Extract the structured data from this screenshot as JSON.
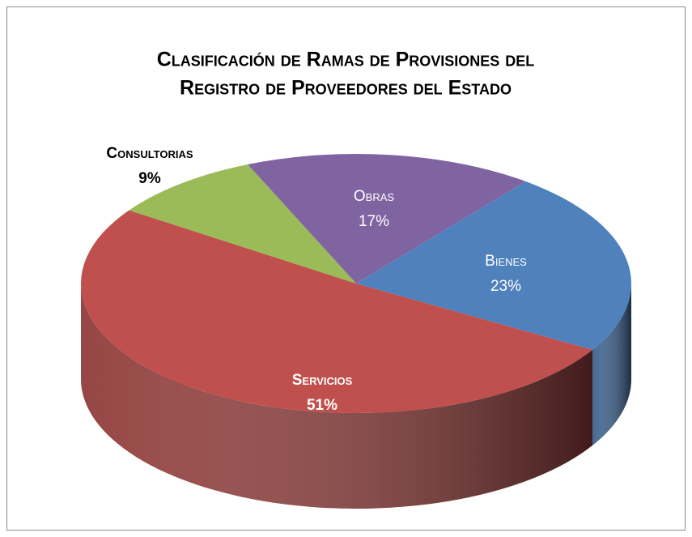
{
  "chart_data": {
    "type": "pie3d",
    "title": [
      "Clasificación de Ramas de Provisiones del",
      "Registro de Proveedores del Estado"
    ],
    "categories": [
      "Bienes",
      "Servicios",
      "Consultorias",
      "Obras"
    ],
    "values": [
      23,
      51,
      9,
      17
    ],
    "value_labels": [
      "23%",
      "51%",
      "9%",
      "17%"
    ],
    "colors": [
      "#4f81bd",
      "#c0504d",
      "#9bbb59",
      "#8064a2"
    ]
  }
}
